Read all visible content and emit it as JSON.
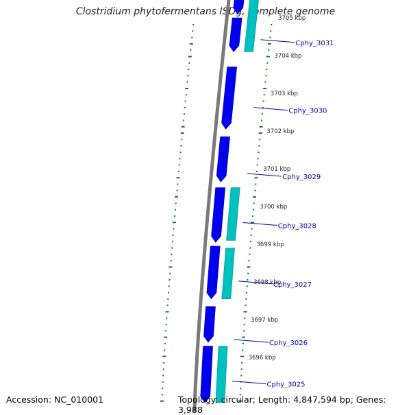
{
  "title": "Clostridium phytofermentans ISDg, complete genome",
  "footer": {
    "accession": "Accession: NC_010001",
    "summary": "Topology: circular; Length: 4,847,594 bp; Genes: 3,988"
  },
  "colors": {
    "backbone": "#7a7a7a",
    "forward_strand": "#0000ee",
    "reverse_strand": "#00c0c0",
    "gc_marks": "#117711",
    "label_text": "#0000b4"
  },
  "scale_labels": [
    {
      "kbp": 3705,
      "text": "3705 kbp"
    },
    {
      "kbp": 3704,
      "text": "3704 kbp"
    },
    {
      "kbp": 3703,
      "text": "3703 kbp"
    },
    {
      "kbp": 3702,
      "text": "3702 kbp"
    },
    {
      "kbp": 3701,
      "text": "3701 kbp"
    },
    {
      "kbp": 3700,
      "text": "3700 kbp"
    },
    {
      "kbp": 3699,
      "text": "3699 kbp"
    },
    {
      "kbp": 3698,
      "text": "3698 kbp"
    },
    {
      "kbp": 3697,
      "text": "3697 kbp"
    },
    {
      "kbp": 3696,
      "text": "3696 kbp"
    }
  ],
  "gene_labels": [
    {
      "name": "Cphy_3031",
      "kbp": 3704.35
    },
    {
      "name": "Cphy_3030",
      "kbp": 3702.55
    },
    {
      "name": "Cphy_3029",
      "kbp": 3700.8
    },
    {
      "name": "Cphy_3028",
      "kbp": 3699.5
    },
    {
      "name": "Cphy_3027",
      "kbp": 3697.95
    },
    {
      "name": "Cphy_3026",
      "kbp": 3696.4
    },
    {
      "name": "Cphy_3025",
      "kbp": 3695.3
    }
  ],
  "genes": [
    {
      "strand": "forward",
      "start_kbp": 3705.5,
      "end_kbp": 3705.1
    },
    {
      "strand": "forward",
      "start_kbp": 3705.0,
      "end_kbp": 3704.1
    },
    {
      "strand": "reverse",
      "start_kbp": 3705.5,
      "end_kbp": 3704.1
    },
    {
      "strand": "forward",
      "start_kbp": 3703.7,
      "end_kbp": 3702.05
    },
    {
      "strand": "forward",
      "start_kbp": 3701.85,
      "end_kbp": 3700.65
    },
    {
      "strand": "forward",
      "start_kbp": 3700.5,
      "end_kbp": 3699.05
    },
    {
      "strand": "reverse",
      "start_kbp": 3700.5,
      "end_kbp": 3699.1
    },
    {
      "strand": "forward",
      "start_kbp": 3698.95,
      "end_kbp": 3697.55
    },
    {
      "strand": "reverse",
      "start_kbp": 3698.9,
      "end_kbp": 3697.55
    },
    {
      "strand": "forward",
      "start_kbp": 3697.35,
      "end_kbp": 3696.4
    },
    {
      "strand": "forward",
      "start_kbp": 3696.3,
      "end_kbp": 3694.8
    },
    {
      "strand": "reverse",
      "start_kbp": 3696.3,
      "end_kbp": 3694.8
    }
  ]
}
